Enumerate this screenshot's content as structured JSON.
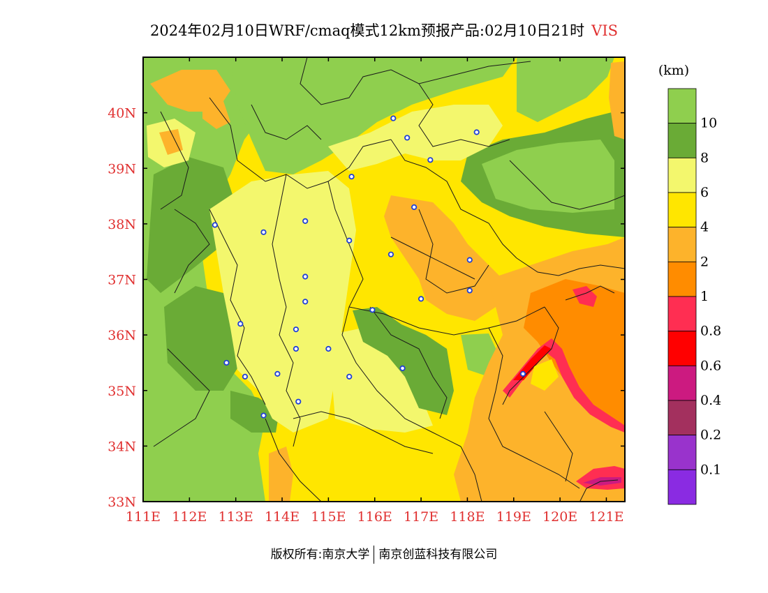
{
  "title": {
    "main": "2024年02月10日WRF/cmaq模式12km预报产品:02月10日21时",
    "variable": "VIS"
  },
  "map": {
    "lon_range": [
      111.0,
      121.4
    ],
    "lat_range": [
      33.0,
      41.0
    ],
    "lon_ticks": [
      {
        "value": 111,
        "label": "111E"
      },
      {
        "value": 112,
        "label": "112E"
      },
      {
        "value": 113,
        "label": "113E"
      },
      {
        "value": 114,
        "label": "114E"
      },
      {
        "value": 115,
        "label": "115E"
      },
      {
        "value": 116,
        "label": "116E"
      },
      {
        "value": 117,
        "label": "117E"
      },
      {
        "value": 118,
        "label": "118E"
      },
      {
        "value": 119,
        "label": "119E"
      },
      {
        "value": 120,
        "label": "120E"
      },
      {
        "value": 121,
        "label": "121E"
      }
    ],
    "lat_ticks": [
      {
        "value": 33,
        "label": "33N"
      },
      {
        "value": 34,
        "label": "34N"
      },
      {
        "value": 35,
        "label": "35N"
      },
      {
        "value": 36,
        "label": "36N"
      },
      {
        "value": 37,
        "label": "37N"
      },
      {
        "value": 38,
        "label": "38N"
      },
      {
        "value": 39,
        "label": "39N"
      },
      {
        "value": 40,
        "label": "40N"
      }
    ],
    "stations": [
      [
        116.4,
        39.9
      ],
      [
        116.7,
        39.55
      ],
      [
        118.2,
        39.65
      ],
      [
        117.2,
        39.15
      ],
      [
        115.5,
        38.85
      ],
      [
        116.85,
        38.3
      ],
      [
        112.55,
        37.98
      ],
      [
        113.6,
        37.85
      ],
      [
        114.5,
        38.05
      ],
      [
        115.45,
        37.7
      ],
      [
        116.35,
        37.45
      ],
      [
        118.05,
        37.35
      ],
      [
        114.5,
        37.05
      ],
      [
        118.05,
        36.8
      ],
      [
        117.0,
        36.65
      ],
      [
        114.5,
        36.6
      ],
      [
        115.95,
        36.45
      ],
      [
        113.1,
        36.2
      ],
      [
        114.3,
        36.1
      ],
      [
        115.0,
        35.75
      ],
      [
        114.3,
        35.75
      ],
      [
        112.8,
        35.5
      ],
      [
        116.6,
        35.4
      ],
      [
        113.9,
        35.3
      ],
      [
        113.2,
        35.25
      ],
      [
        115.45,
        35.25
      ],
      [
        119.2,
        35.3
      ],
      [
        114.35,
        34.8
      ],
      [
        113.6,
        34.55
      ]
    ]
  },
  "legend": {
    "unit": "(km)",
    "levels": [
      {
        "label": "10",
        "color": "#8fcf4e"
      },
      {
        "label": "8",
        "color": "#6aab36"
      },
      {
        "label": "6",
        "color": "#f3f76d"
      },
      {
        "label": "4",
        "color": "#ffe600"
      },
      {
        "label": "2",
        "color": "#fdb32b"
      },
      {
        "label": "1",
        "color": "#ff8c00"
      },
      {
        "label": "0.8",
        "color": "#ff2e52"
      },
      {
        "label": "0.6",
        "color": "#ff0000"
      },
      {
        "label": "0.4",
        "color": "#cc1a80"
      },
      {
        "label": "0.2",
        "color": "#a3305e"
      },
      {
        "label": "0.1",
        "color": "#9933cc"
      },
      {
        "label": "",
        "color": "#8a2be2"
      }
    ]
  },
  "footer": {
    "left": "版权所有:南京大学",
    "right": "南京创蓝科技有限公司"
  }
}
